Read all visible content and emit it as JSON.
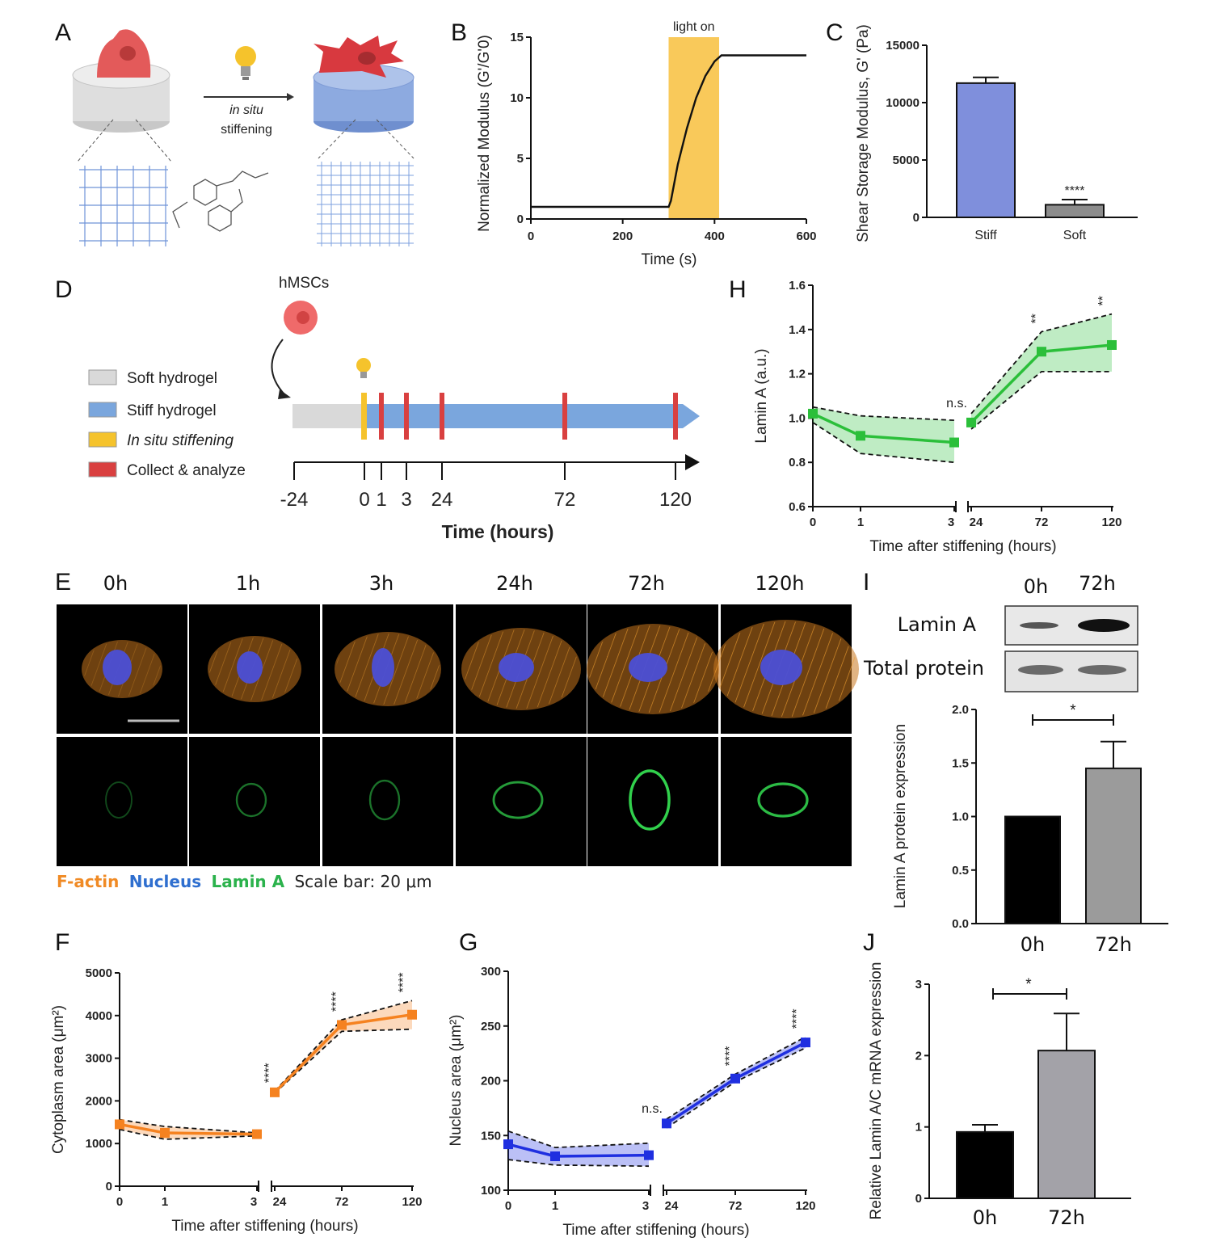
{
  "panel_labels": [
    "A",
    "B",
    "C",
    "D",
    "E",
    "F",
    "G",
    "H",
    "I",
    "J"
  ],
  "A": {
    "arrow_label_1": "in situ",
    "arrow_label_2": "stiffening"
  },
  "B": {
    "annotation": "light on"
  },
  "D": {
    "cell_label": "hMSCs",
    "legend": [
      "Soft hydrogel",
      "Stiff hydrogel",
      "In situ stiffening",
      "Collect & analyze"
    ],
    "legend_colors": [
      "#d9d9d9",
      "#7aa6dd",
      "#f5c32c",
      "#d94040"
    ],
    "ticks": [
      "-24",
      "0",
      "1",
      "3",
      "24",
      "72",
      "120"
    ],
    "xlabel": "Time (hours)"
  },
  "E": {
    "headers": [
      "0h",
      "1h",
      "3h",
      "24h",
      "72h",
      "120h"
    ],
    "legend_factin": "F-actin",
    "legend_nucleus": "Nucleus",
    "legend_lamin": "Lamin A",
    "legend_scale": "Scale bar: 20 μm",
    "colors": {
      "factin": "#f08a24",
      "nucleus": "#2f6fcf",
      "lamin": "#2bb24c"
    }
  },
  "I": {
    "headers": [
      "0h",
      "72h"
    ],
    "rows": [
      "Lamin A",
      "Total protein"
    ]
  },
  "chart_data": [
    {
      "id": "B",
      "type": "line",
      "xlabel": "Time (s)",
      "ylabel": "Normalized Modulus (G'/G'0)",
      "xlim": [
        0,
        600
      ],
      "ylim": [
        0,
        15
      ],
      "xticks": [
        "0",
        "200",
        "400",
        "600"
      ],
      "yticks": [
        "0",
        "5",
        "10",
        "15"
      ],
      "x": [
        0,
        300,
        305,
        320,
        340,
        360,
        380,
        400,
        415,
        440,
        600
      ],
      "y": [
        1,
        1,
        1.5,
        4.5,
        7.5,
        10,
        11.8,
        13,
        13.5,
        13.5,
        13.5
      ],
      "shade": [
        300,
        410
      ]
    },
    {
      "id": "C",
      "type": "bar",
      "ylabel": "Shear Storage Modulus, G' (Pa)",
      "ylim": [
        0,
        15000
      ],
      "yticks": [
        "0",
        "5000",
        "10000",
        "15000"
      ],
      "categories": [
        "Stiff",
        "Soft"
      ],
      "values": [
        11700,
        1100
      ],
      "errors": [
        500,
        450
      ],
      "colors": [
        "#7f8fdc",
        "#8c8c8c"
      ],
      "sig": [
        "",
        "****"
      ]
    },
    {
      "id": "H",
      "type": "line",
      "xlabel": "Time after stiffening (hours)",
      "ylabel": "Lamin A (a.u.)",
      "ylim": [
        0.6,
        1.6
      ],
      "yticks": [
        "0.6",
        "0.8",
        "1.0",
        "1.2",
        "1.4",
        "1.6"
      ],
      "x": [
        "0",
        "1",
        "3",
        "24",
        "72",
        "120"
      ],
      "y": [
        1.02,
        0.92,
        0.89,
        0.98,
        1.3,
        1.33
      ],
      "lo": [
        0.98,
        0.84,
        0.8,
        0.95,
        1.21,
        1.21
      ],
      "hi": [
        1.05,
        1.01,
        0.99,
        1.02,
        1.39,
        1.47
      ],
      "sig": [
        "",
        "",
        "",
        "n.s.",
        "**",
        "**"
      ],
      "color": "#2bbf3a"
    },
    {
      "id": "I",
      "type": "bar",
      "ylabel": "Lamin A protein expression",
      "ylim": [
        0,
        2
      ],
      "yticks": [
        "0.0",
        "0.5",
        "1.0",
        "1.5",
        "2.0"
      ],
      "categories": [
        "0h",
        "72h"
      ],
      "values": [
        1.0,
        1.45
      ],
      "errors": [
        0.0,
        0.25
      ],
      "colors": [
        "#000000",
        "#9b9b9b"
      ],
      "sig": "*"
    },
    {
      "id": "F",
      "type": "line",
      "xlabel": "Time after stiffening (hours)",
      "ylabel": "Cytoplasm area (μm²)",
      "ylim": [
        0,
        5000
      ],
      "yticks": [
        "0",
        "1000",
        "2000",
        "3000",
        "4000",
        "5000"
      ],
      "x": [
        "0",
        "1",
        "3",
        "24",
        "72",
        "120"
      ],
      "y": [
        1450,
        1250,
        1220,
        2200,
        3780,
        4020
      ],
      "lo": [
        1330,
        1100,
        1180,
        2180,
        3630,
        3680
      ],
      "hi": [
        1560,
        1400,
        1250,
        2230,
        3900,
        4350
      ],
      "sig": [
        "",
        "",
        "",
        "****",
        "****",
        "****"
      ],
      "color": "#f58220"
    },
    {
      "id": "G",
      "type": "line",
      "xlabel": "Time after stiffening (hours)",
      "ylabel": "Nucleus area (μm²)",
      "ylim": [
        100,
        300
      ],
      "yticks": [
        "100",
        "150",
        "200",
        "250",
        "300"
      ],
      "x": [
        "0",
        "1",
        "3",
        "24",
        "72",
        "120"
      ],
      "y": [
        142,
        131,
        132,
        161,
        202,
        235
      ],
      "lo": [
        128,
        123,
        122,
        157,
        199,
        230
      ],
      "hi": [
        154,
        139,
        143,
        165,
        206,
        240
      ],
      "sig": [
        "",
        "",
        "",
        "n.s.",
        "****",
        "****"
      ],
      "color": "#1f2fe0"
    },
    {
      "id": "J",
      "type": "bar",
      "ylabel": "Relative Lamin A/C mRNA expression",
      "ylim": [
        0,
        3
      ],
      "yticks": [
        "0",
        "1",
        "2",
        "3"
      ],
      "categories": [
        "0h",
        "72h"
      ],
      "values": [
        0.93,
        2.07
      ],
      "errors": [
        0.1,
        0.52
      ],
      "colors": [
        "#000000",
        "#a3a2a8"
      ],
      "sig": "*"
    }
  ]
}
